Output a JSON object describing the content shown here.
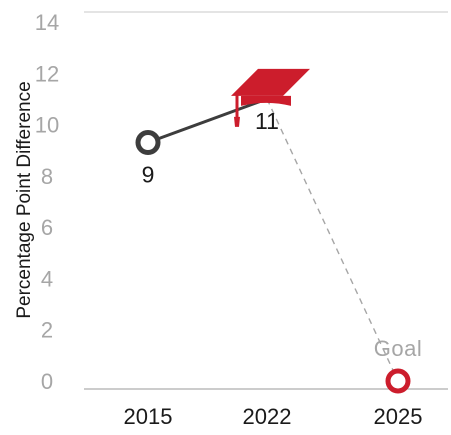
{
  "chart_data": {
    "type": "line",
    "xlabel": "",
    "ylabel": "Percentage Point Difference",
    "ylim": [
      0,
      14
    ],
    "yticks": [
      "0",
      "2",
      "4",
      "6",
      "8",
      "10",
      "12",
      "14"
    ],
    "grid": false,
    "categories": [
      "2015",
      "2022",
      "2025"
    ],
    "series": [
      {
        "values": [
          9.3,
          11,
          null
        ],
        "style": "solid",
        "color": "#3d3d3d"
      },
      {
        "values": [
          null,
          11,
          0
        ],
        "style": "dashed",
        "color": "#a6a6a6"
      }
    ],
    "data_labels": [
      "9",
      "11",
      ""
    ],
    "annotations": [
      {
        "text": "Goal",
        "target": "2025",
        "color": "#a6a6a6"
      }
    ],
    "markers": {
      "2015": {
        "shape": "open-circle",
        "color": "#3d3d3d"
      },
      "2022": {
        "shape": "graduation-cap-icon",
        "color": "#cc1d2c"
      },
      "2025": {
        "shape": "open-circle",
        "color": "#cc1d2c"
      }
    }
  }
}
